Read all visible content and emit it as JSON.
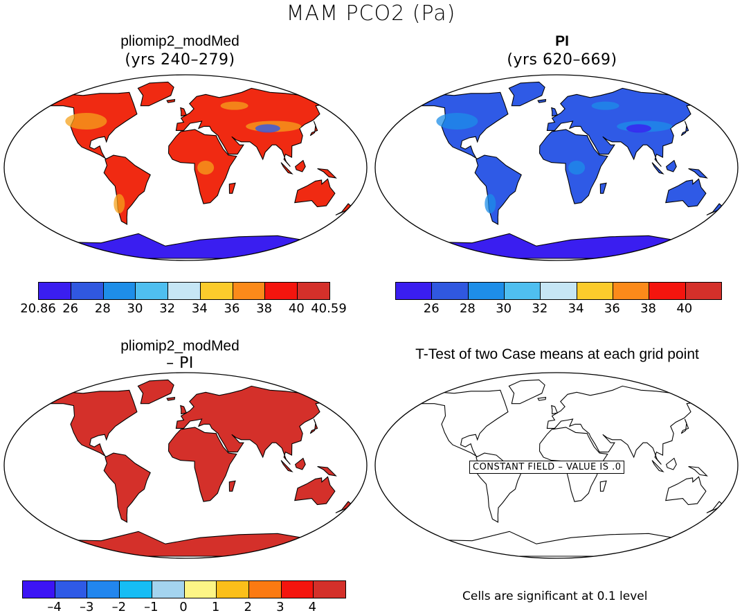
{
  "main_title": "MAM PCO2 (Pa)",
  "panels": {
    "top_left": {
      "title": "pliomip2_modMed",
      "subtitle": "(yrs 240–279)"
    },
    "top_right": {
      "title": "PI",
      "subtitle": "(yrs 620–669)"
    },
    "bottom_left": {
      "title": "pliomip2_modMed",
      "subtitle": "– PI"
    },
    "bottom_right": {
      "title": "T-Test of two Case means at each grid point",
      "message": "CONSTANT FIELD – VALUE IS .0",
      "note": "Cells are significant at 0.1 level"
    }
  },
  "colorbars": {
    "top_left": {
      "colors": [
        "#3a1ef0",
        "#3058e0",
        "#1e8ee8",
        "#4fbff0",
        "#c6e6f5",
        "#fbcb2c",
        "#fb8a1a",
        "#f4150e",
        "#d4302a"
      ],
      "labels": [
        "20.86",
        "26",
        "28",
        "30",
        "32",
        "34",
        "36",
        "38",
        "40",
        "40.59"
      ]
    },
    "top_right": {
      "colors": [
        "#3a1ef0",
        "#3058e0",
        "#1e8ee8",
        "#4fbff0",
        "#c6e6f5",
        "#fbcb2c",
        "#fb8a1a",
        "#f4150e",
        "#d4302a"
      ],
      "labels": [
        "26",
        "28",
        "30",
        "32",
        "34",
        "36",
        "38",
        "40"
      ]
    },
    "bottom_left": {
      "colors": [
        "#3c14f5",
        "#2f5ae6",
        "#2286ee",
        "#16bdf4",
        "#a4d4ef",
        "#fdf586",
        "#fbbf1a",
        "#fb7a12",
        "#f4150e",
        "#d4302a"
      ],
      "labels": [
        "–4",
        "–3",
        "–2",
        "–1",
        "0",
        "1",
        "2",
        "3",
        "4"
      ]
    }
  },
  "maps": {
    "top_left": {
      "fill": "#f02a12",
      "accent": "#f6a21c",
      "cool": "#2f5ae6",
      "antarctic": "#3a1ef0"
    },
    "top_right": {
      "fill": "#2f5ae6",
      "accent": "#1e8ee8",
      "cool": "#3a1ef0",
      "antarctic": "#3a1ef0"
    },
    "bottom_left": {
      "fill": "#d4302a",
      "accent": "#d4302a",
      "cool": "#d4302a",
      "antarctic": "#d4302a"
    },
    "bottom_right": {
      "fill": "none",
      "accent": "none",
      "cool": "none",
      "antarctic": "none"
    }
  }
}
